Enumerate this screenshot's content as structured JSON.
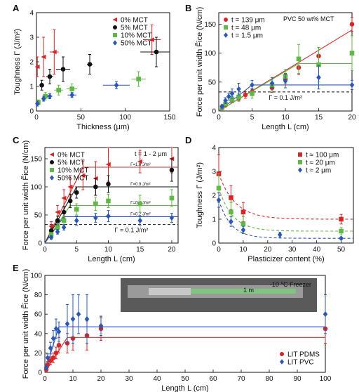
{
  "colors": {
    "red": "#d62728",
    "black": "#111111",
    "green": "#62b846",
    "blue": "#2b57b3",
    "gray": "#8a8a8a"
  },
  "chart_data": [
    {
      "id": "A",
      "type": "scatter",
      "panel_label": "A",
      "xlabel": "Thickness (μm)",
      "ylabel": "Toughness Γ (J/m²)",
      "xlim": [
        0,
        150
      ],
      "ylim": [
        0,
        4
      ],
      "xticks": [
        "0",
        "50",
        "100",
        "150"
      ],
      "yticks": [
        "0",
        "1",
        "2",
        "3",
        "4"
      ],
      "legend_position": "top-right",
      "series": [
        {
          "name": "0% MCT",
          "marker": "triangle-left",
          "color": "red",
          "points": [
            [
              1,
              1.8,
              0.4,
              1
            ],
            [
              8,
              2.2,
              0.8,
              2
            ],
            [
              20,
              2.4,
              0.9,
              5
            ],
            [
              130,
              2.9,
              0.6,
              10
            ]
          ]
        },
        {
          "name": "5% MCT",
          "marker": "circle",
          "color": "black",
          "points": [
            [
              6,
              1.05,
              0.2,
              2
            ],
            [
              15,
              1.4,
              0.3,
              4
            ],
            [
              30,
              1.7,
              0.5,
              8
            ],
            [
              60,
              1.9,
              0.4,
              3
            ],
            [
              135,
              2.4,
              0.6,
              18
            ]
          ]
        },
        {
          "name": "10% MCT",
          "marker": "square",
          "color": "green",
          "points": [
            [
              2,
              0.35,
              0.1,
              1
            ],
            [
              10,
              0.6,
              0.15,
              3
            ],
            [
              25,
              0.85,
              0.2,
              5
            ],
            [
              40,
              0.9,
              0.2,
              6
            ],
            [
              115,
              1.3,
              0.3,
              8
            ]
          ]
        },
        {
          "name": "50% MCT",
          "marker": "diamond",
          "color": "blue",
          "points": [
            [
              1,
              0.3,
              0.1,
              1
            ],
            [
              8,
              0.5,
              0.1,
              2
            ],
            [
              15,
              0.6,
              0.1,
              3
            ],
            [
              40,
              0.65,
              0.1,
              5
            ],
            [
              90,
              1.05,
              0.15,
              15
            ]
          ]
        }
      ]
    },
    {
      "id": "B",
      "type": "scatter",
      "panel_label": "B",
      "annotation": "PVC 50 wt% MCT",
      "xlabel": "Length L (cm)",
      "ylabel": "Force per unit width F̃ice (N/cm)",
      "xlim": [
        0,
        20
      ],
      "ylim": [
        0,
        170
      ],
      "xticks": [
        "0",
        "5",
        "10",
        "15",
        "20"
      ],
      "yticks": [
        "0",
        "50",
        "100",
        "150"
      ],
      "legend_position": "top-left",
      "threshold": {
        "value": 33,
        "label": "Γ = 0.1 J/m²"
      },
      "series": [
        {
          "name": "t = 139 μm",
          "marker": "circle",
          "color": "red",
          "points": [
            [
              0.5,
              5,
              2
            ],
            [
              1,
              10,
              3
            ],
            [
              2,
              18,
              4
            ],
            [
              3,
              22,
              5
            ],
            [
              4,
              28,
              6
            ],
            [
              5,
              33,
              6
            ],
            [
              8,
              40,
              8
            ],
            [
              10,
              55,
              10
            ],
            [
              12,
              75,
              12
            ],
            [
              15,
              95,
              15
            ],
            [
              20,
              150,
              12
            ]
          ],
          "fit": [
            [
              0,
              0
            ],
            [
              20,
              140
            ]
          ]
        },
        {
          "name": "t = 48 μm",
          "marker": "square",
          "color": "green",
          "points": [
            [
              0.5,
              6,
              2
            ],
            [
              1,
              12,
              3
            ],
            [
              2,
              20,
              5
            ],
            [
              3,
              24,
              6
            ],
            [
              5,
              30,
              8
            ],
            [
              8,
              45,
              10
            ],
            [
              10,
              60,
              12
            ],
            [
              12,
              90,
              25
            ],
            [
              15,
              80,
              30
            ],
            [
              20,
              100,
              30
            ]
          ],
          "fit": [
            [
              0,
              0
            ],
            [
              12,
              82
            ],
            [
              20,
              82
            ]
          ]
        },
        {
          "name": "t = 1.5 μm",
          "marker": "diamond",
          "color": "blue",
          "points": [
            [
              0.5,
              8,
              3
            ],
            [
              1,
              18,
              5
            ],
            [
              1.5,
              25,
              6
            ],
            [
              2,
              30,
              8
            ],
            [
              3,
              38,
              10
            ],
            [
              5,
              45,
              8
            ],
            [
              8,
              48,
              10
            ],
            [
              10,
              52,
              12
            ],
            [
              15,
              58,
              20
            ],
            [
              20,
              45,
              8
            ]
          ],
          "fit": [
            [
              0,
              0
            ],
            [
              5,
              45
            ],
            [
              20,
              45
            ]
          ]
        }
      ]
    },
    {
      "id": "C",
      "type": "scatter",
      "panel_label": "C",
      "annotation": "t = 1 - 2 μm",
      "xlabel": "Length L (cm)",
      "ylabel": "Force per unit width F̃ice (N/cm)",
      "xlim": [
        0,
        21
      ],
      "ylim": [
        0,
        170
      ],
      "xticks": [
        "0",
        "5",
        "10",
        "15",
        "20"
      ],
      "yticks": [
        "0",
        "50",
        "100",
        "150"
      ],
      "legend_position": "top-left",
      "threshold": {
        "value": 33,
        "label": "Γ = 0.1 J/m²"
      },
      "fit_labels": [
        "Γ=1.8 J/m²",
        "Γ=0.9 J/m²",
        "Γ=0.4 J/m²",
        "Γ=0.2 J/m²"
      ],
      "series": [
        {
          "name": "0% MCT",
          "marker": "triangle-left",
          "color": "red",
          "points": [
            [
              1,
              30,
              8
            ],
            [
              2,
              55,
              12
            ],
            [
              3,
              80,
              15
            ],
            [
              4,
              100,
              20
            ],
            [
              6,
              120,
              25
            ],
            [
              8,
              115,
              30
            ],
            [
              10,
              140,
              30
            ],
            [
              15,
              145,
              20
            ],
            [
              20,
              150,
              25
            ]
          ],
          "fit": [
            [
              0,
              0
            ],
            [
              6,
              135
            ],
            [
              21,
              135
            ]
          ]
        },
        {
          "name": "5% MCT",
          "marker": "circle",
          "color": "black",
          "points": [
            [
              1,
              22,
              5
            ],
            [
              2,
              40,
              8
            ],
            [
              3,
              55,
              10
            ],
            [
              4,
              75,
              12
            ],
            [
              5,
              90,
              10
            ],
            [
              8,
              100,
              15
            ],
            [
              10,
              105,
              15
            ],
            [
              20,
              130,
              20
            ]
          ],
          "fit": [
            [
              0,
              0
            ],
            [
              5,
              100
            ],
            [
              21,
              100
            ]
          ]
        },
        {
          "name": "10% MCT",
          "marker": "square",
          "color": "green",
          "points": [
            [
              1,
              15,
              4
            ],
            [
              2,
              28,
              6
            ],
            [
              3,
              40,
              8
            ],
            [
              5,
              60,
              10
            ],
            [
              8,
              70,
              12
            ],
            [
              10,
              75,
              12
            ],
            [
              15,
              70,
              15
            ],
            [
              20,
              80,
              15
            ]
          ],
          "fit": [
            [
              0,
              0
            ],
            [
              4,
              67
            ],
            [
              21,
              67
            ]
          ]
        },
        {
          "name": "50% MCT",
          "marker": "diamond",
          "color": "blue",
          "points": [
            [
              1,
              10,
              3
            ],
            [
              2,
              20,
              4
            ],
            [
              3,
              28,
              5
            ],
            [
              5,
              40,
              8
            ],
            [
              8,
              45,
              8
            ],
            [
              10,
              48,
              10
            ],
            [
              15,
              40,
              8
            ],
            [
              20,
              45,
              8
            ]
          ],
          "fit": [
            [
              0,
              0
            ],
            [
              3,
              47
            ],
            [
              21,
              47
            ]
          ]
        }
      ]
    },
    {
      "id": "D",
      "type": "scatter",
      "panel_label": "D",
      "xlabel": "Plasticizer content (%)",
      "ylabel": "Toughness Γ (J/m²)",
      "xlim": [
        0,
        55
      ],
      "ylim": [
        0,
        4
      ],
      "xticks": [
        "0",
        "10",
        "20",
        "30",
        "40",
        "50"
      ],
      "yticks": [
        "0",
        "1",
        "2",
        "3",
        "4"
      ],
      "legend_position": "top-right",
      "series": [
        {
          "name": "t ≈ 100 μm",
          "marker": "square",
          "color": "red",
          "points": [
            [
              0,
              2.9,
              0.8
            ],
            [
              5,
              1.9,
              0.5
            ],
            [
              10,
              1.3,
              0.4
            ],
            [
              50,
              1.0,
              0.2
            ]
          ],
          "fit_curve": {
            "a": 1.9,
            "b": 0.15,
            "c": 1.0
          }
        },
        {
          "name": "t ≈ 20 μm",
          "marker": "square",
          "color": "green",
          "points": [
            [
              0,
              2.3,
              0.6
            ],
            [
              5,
              1.3,
              0.4
            ],
            [
              10,
              0.8,
              0.3
            ],
            [
              50,
              0.5,
              0.15
            ]
          ],
          "fit_curve": {
            "a": 1.8,
            "b": 0.18,
            "c": 0.5
          }
        },
        {
          "name": "t ≈ 2 μm",
          "marker": "diamond",
          "color": "blue",
          "points": [
            [
              0,
              1.8,
              0.3
            ],
            [
              5,
              0.9,
              0.2
            ],
            [
              10,
              0.55,
              0.15
            ],
            [
              25,
              0.35,
              0.1
            ],
            [
              50,
              0.2,
              0.05
            ]
          ],
          "fit_curve": {
            "a": 1.6,
            "b": 0.2,
            "c": 0.2
          }
        }
      ]
    },
    {
      "id": "E",
      "type": "scatter",
      "panel_label": "E",
      "xlabel": "Length L (cm)",
      "ylabel": "Force per unit width F̃ice (N/cm)",
      "xlim": [
        0,
        100
      ],
      "ylim": [
        0,
        100
      ],
      "xticks": [
        "0",
        "10",
        "20",
        "30",
        "40",
        "50",
        "60",
        "70",
        "80",
        "90",
        "100"
      ],
      "yticks": [
        "0",
        "20",
        "40",
        "60",
        "80",
        "100"
      ],
      "legend_position": "bottom-right",
      "photo_caption": "-10 °C Freezer",
      "photo_label": "1 m",
      "series": [
        {
          "name": "LIT PDMS",
          "marker": "circle",
          "color": "red",
          "points": [
            [
              0.5,
              3,
              2
            ],
            [
              1,
              8,
              3
            ],
            [
              2,
              12,
              4
            ],
            [
              3,
              15,
              5
            ],
            [
              4,
              20,
              6
            ],
            [
              5,
              28,
              8
            ],
            [
              8,
              30,
              10
            ],
            [
              10,
              35,
              12
            ],
            [
              15,
              38,
              15
            ],
            [
              20,
              45,
              12
            ],
            [
              100,
              45,
              15
            ]
          ],
          "fit": [
            [
              0,
              0
            ],
            [
              8,
              36
            ],
            [
              100,
              36
            ]
          ]
        },
        {
          "name": "LIT PVC",
          "marker": "diamond",
          "color": "blue",
          "points": [
            [
              0.5,
              5,
              2
            ],
            [
              1,
              15,
              4
            ],
            [
              2,
              25,
              6
            ],
            [
              3,
              35,
              8
            ],
            [
              4,
              45,
              10
            ],
            [
              5,
              42,
              10
            ],
            [
              8,
              50,
              20
            ],
            [
              10,
              55,
              25
            ],
            [
              12,
              60,
              20
            ],
            [
              15,
              55,
              25
            ],
            [
              20,
              48,
              10
            ],
            [
              100,
              60,
              20
            ]
          ],
          "fit": [
            [
              0,
              0
            ],
            [
              5,
              47
            ],
            [
              100,
              47
            ]
          ]
        }
      ]
    }
  ]
}
